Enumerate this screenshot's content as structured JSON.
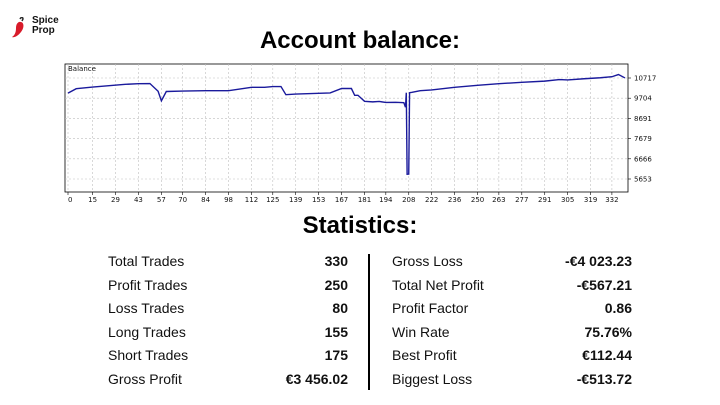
{
  "brand": {
    "line1": "Spice",
    "line2": "Prop",
    "accent": "#d81b2a"
  },
  "title": "Account balance:",
  "stats_title": "Statistics:",
  "chart_data": {
    "type": "line",
    "title": "Balance",
    "xlabel": "",
    "ylabel": "",
    "grid": true,
    "line_color": "#1a1a9c",
    "xlim": [
      0,
      340
    ],
    "ylim": [
      5653,
      10717
    ],
    "x_ticks": [
      0,
      15,
      29,
      43,
      57,
      70,
      84,
      98,
      112,
      125,
      139,
      153,
      167,
      181,
      194,
      208,
      222,
      236,
      250,
      263,
      277,
      291,
      305,
      319,
      332
    ],
    "y_ticks": [
      5653,
      6666,
      7679,
      8691,
      9704,
      10717
    ],
    "series": [
      {
        "x": [
          0,
          5,
          15,
          25,
          35,
          43,
          50,
          55,
          57,
          60,
          70,
          84,
          98,
          112,
          120,
          125,
          130,
          133,
          139,
          153,
          160,
          167,
          173,
          175,
          177,
          181,
          186,
          190,
          194,
          200,
          205,
          206,
          206.5,
          207,
          208,
          208.5,
          210,
          215,
          222,
          236,
          250,
          263,
          277,
          291,
          300,
          305,
          315,
          325,
          332,
          336,
          340
        ],
        "y": [
          9960,
          10180,
          10260,
          10330,
          10400,
          10430,
          10440,
          10050,
          9570,
          10040,
          10060,
          10080,
          10080,
          10250,
          10250,
          10290,
          10290,
          9880,
          9910,
          9950,
          9970,
          10190,
          10190,
          9850,
          9850,
          9550,
          9520,
          9540,
          9490,
          9500,
          9480,
          9250,
          9980,
          5890,
          5900,
          9980,
          10000,
          10080,
          10120,
          10250,
          10350,
          10430,
          10500,
          10560,
          10640,
          10620,
          10680,
          10730,
          10780,
          10890,
          10720
        ]
      }
    ]
  },
  "stats": {
    "left": [
      {
        "label": "Total Trades",
        "value": "330"
      },
      {
        "label": "Profit Trades",
        "value": "250"
      },
      {
        "label": "Loss Trades",
        "value": "80"
      },
      {
        "label": "Long Trades",
        "value": "155"
      },
      {
        "label": "Short Trades",
        "value": "175"
      },
      {
        "label": "Gross Profit",
        "value": "€3 456.02"
      }
    ],
    "right": [
      {
        "label": "Gross Loss",
        "value": "-€4 023.23"
      },
      {
        "label": "Total Net Profit",
        "value": "-€567.21"
      },
      {
        "label": "Profit Factor",
        "value": "0.86"
      },
      {
        "label": "Win Rate",
        "value": "75.76%"
      },
      {
        "label": "Best Profit",
        "value": "€112.44"
      },
      {
        "label": "Biggest Loss",
        "value": "-€513.72"
      }
    ]
  }
}
